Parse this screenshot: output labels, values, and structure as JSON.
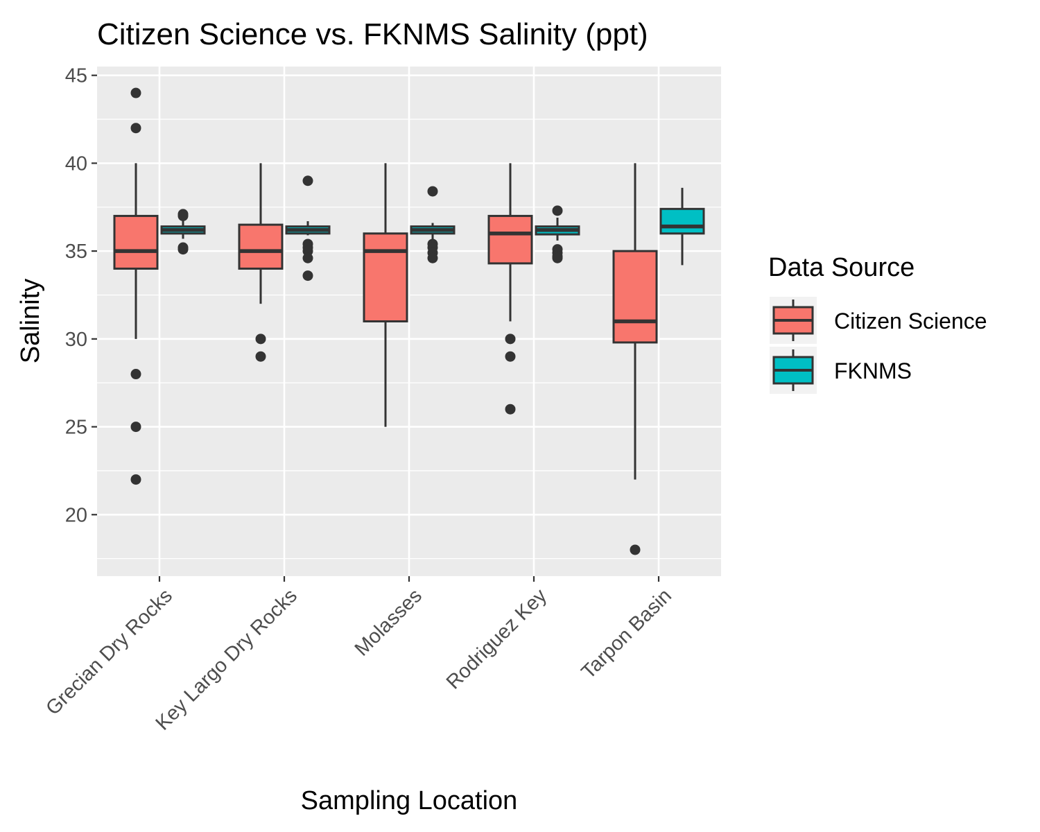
{
  "chart_data": {
    "type": "boxplot",
    "title": "Citizen Science vs. FKNMS Salinity (ppt)",
    "xlabel": "Sampling Location",
    "ylabel": "Salinity",
    "ylim": [
      16.5,
      45.5
    ],
    "yticks": [
      20,
      25,
      30,
      35,
      40,
      45
    ],
    "grid": true,
    "categories": [
      "Grecian Dry Rocks",
      "Key Largo Dry Rocks",
      "Molasses",
      "Rodriguez Key",
      "Tarpon Basin"
    ],
    "legend": {
      "title": "Data Source",
      "position": "right"
    },
    "series": [
      {
        "name": "Citizen Science",
        "color": "#F8766D",
        "boxes": [
          {
            "whisker_low": 30,
            "q1": 34,
            "median": 35,
            "q3": 37,
            "whisker_high": 40,
            "outliers": [
              44,
              42,
              28,
              25,
              22
            ]
          },
          {
            "whisker_low": 32,
            "q1": 34,
            "median": 35,
            "q3": 36.5,
            "whisker_high": 40,
            "outliers": [
              30,
              29
            ]
          },
          {
            "whisker_low": 25,
            "q1": 31,
            "median": 35,
            "q3": 36,
            "whisker_high": 40,
            "outliers": []
          },
          {
            "whisker_low": 31,
            "q1": 34.3,
            "median": 36,
            "q3": 37,
            "whisker_high": 40,
            "outliers": [
              30,
              29,
              26
            ]
          },
          {
            "whisker_low": 22,
            "q1": 29.8,
            "median": 31,
            "q3": 35,
            "whisker_high": 40,
            "outliers": [
              18
            ]
          }
        ]
      },
      {
        "name": "FKNMS",
        "color": "#00BFC4",
        "boxes": [
          {
            "whisker_low": 35.7,
            "q1": 36,
            "median": 36.2,
            "q3": 36.4,
            "whisker_high": 36.8,
            "outliers": [
              37.1,
              37,
              35.2,
              35.1
            ]
          },
          {
            "whisker_low": 35.9,
            "q1": 36,
            "median": 36.2,
            "q3": 36.4,
            "whisker_high": 36.7,
            "outliers": [
              39,
              35.4,
              35.2,
              35,
              34.6,
              33.6
            ]
          },
          {
            "whisker_low": 35.6,
            "q1": 36,
            "median": 36.2,
            "q3": 36.4,
            "whisker_high": 36.6,
            "outliers": [
              38.4,
              35.4,
              35.2,
              34.9,
              34.6
            ]
          },
          {
            "whisker_low": 35.6,
            "q1": 35.95,
            "median": 36.2,
            "q3": 36.4,
            "whisker_high": 36.9,
            "outliers": [
              37.3,
              35.1,
              34.9,
              34.7,
              34.6
            ]
          },
          {
            "whisker_low": 34.2,
            "q1": 36,
            "median": 36.4,
            "q3": 37.4,
            "whisker_high": 38.6,
            "outliers": []
          }
        ]
      }
    ]
  }
}
